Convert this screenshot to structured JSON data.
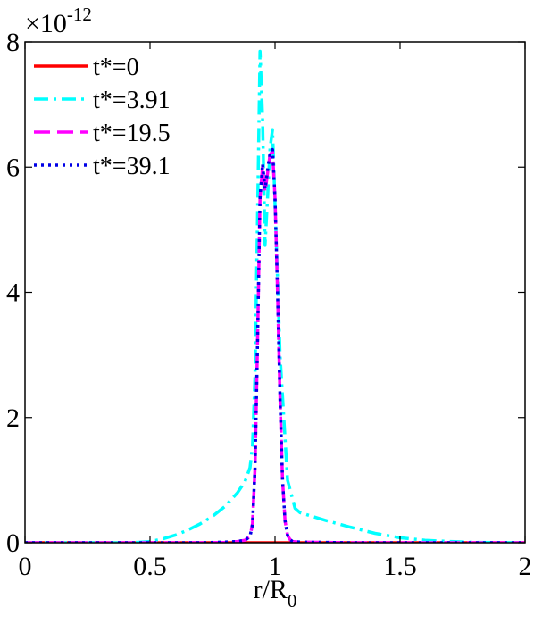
{
  "chart_data": {
    "type": "line",
    "xlabel_main": "r/R",
    "xlabel_sub": "0",
    "ylabel": "",
    "exponent_base": "×10",
    "exponent_power": "-12",
    "xlim": [
      0,
      2
    ],
    "ylim": [
      0,
      8
    ],
    "xticks": [
      "0",
      "0.5",
      "1",
      "1.5",
      "2"
    ],
    "xtick_values": [
      0,
      0.5,
      1,
      1.5,
      2
    ],
    "yticks": [
      "0",
      "2",
      "4",
      "6",
      "8"
    ],
    "ytick_values": [
      0,
      2,
      4,
      6,
      8
    ],
    "grid": false,
    "legend_position": "top-left",
    "series": [
      {
        "name": "t*=0",
        "color": "#ff0000",
        "style": "solid",
        "x": [
          0,
          0.5,
          1,
          1.5,
          2
        ],
        "y": [
          0,
          0,
          0,
          0,
          0
        ]
      },
      {
        "name": "t*=3.91",
        "color": "#00ffff",
        "style": "dashdot",
        "x": [
          0,
          0.4,
          0.45,
          0.5,
          0.55,
          0.6,
          0.65,
          0.7,
          0.75,
          0.8,
          0.85,
          0.88,
          0.9,
          0.91,
          0.92,
          0.93,
          0.94,
          0.95,
          0.96,
          0.97,
          0.98,
          0.99,
          1.0,
          1.02,
          1.05,
          1.08,
          1.1,
          1.2,
          1.3,
          1.4,
          1.5,
          1.6,
          1.7,
          1.8,
          2.0
        ],
        "y": [
          0,
          0,
          0.005,
          0.02,
          0.06,
          0.12,
          0.2,
          0.3,
          0.42,
          0.58,
          0.8,
          0.98,
          1.2,
          1.55,
          2.7,
          5.2,
          7.85,
          6.8,
          4.75,
          5.5,
          6.3,
          6.6,
          5.4,
          3.0,
          1.0,
          0.55,
          0.48,
          0.36,
          0.25,
          0.15,
          0.08,
          0.04,
          0.02,
          0.005,
          0
        ]
      },
      {
        "name": "t*=19.5",
        "color": "#ff00ff",
        "style": "dashed",
        "x": [
          0,
          0.7,
          0.8,
          0.85,
          0.88,
          0.9,
          0.91,
          0.92,
          0.93,
          0.94,
          0.95,
          0.96,
          0.97,
          0.98,
          0.99,
          1.0,
          1.01,
          1.02,
          1.03,
          1.04,
          1.05,
          1.06,
          1.07,
          1.1,
          1.2,
          1.3,
          2.0
        ],
        "y": [
          0,
          0,
          0.01,
          0.02,
          0.04,
          0.1,
          0.3,
          1.2,
          3.2,
          5.5,
          6.0,
          5.6,
          5.9,
          6.2,
          6.25,
          5.5,
          4.0,
          2.3,
          1.0,
          0.35,
          0.12,
          0.05,
          0.02,
          0.01,
          0.005,
          0,
          0
        ]
      },
      {
        "name": "t*=39.1",
        "color": "#0000e6",
        "style": "dotted",
        "x": [
          0,
          0.7,
          0.8,
          0.85,
          0.88,
          0.9,
          0.91,
          0.92,
          0.93,
          0.94,
          0.95,
          0.96,
          0.97,
          0.98,
          0.99,
          1.0,
          1.01,
          1.02,
          1.03,
          1.04,
          1.05,
          1.06,
          1.07,
          1.1,
          1.2,
          1.3,
          2.0
        ],
        "y": [
          0,
          0,
          0.01,
          0.02,
          0.04,
          0.1,
          0.3,
          1.2,
          3.2,
          5.5,
          6.05,
          5.65,
          5.95,
          6.22,
          6.28,
          5.5,
          4.0,
          2.3,
          1.0,
          0.35,
          0.12,
          0.05,
          0.02,
          0.01,
          0.005,
          0,
          0
        ]
      }
    ]
  }
}
